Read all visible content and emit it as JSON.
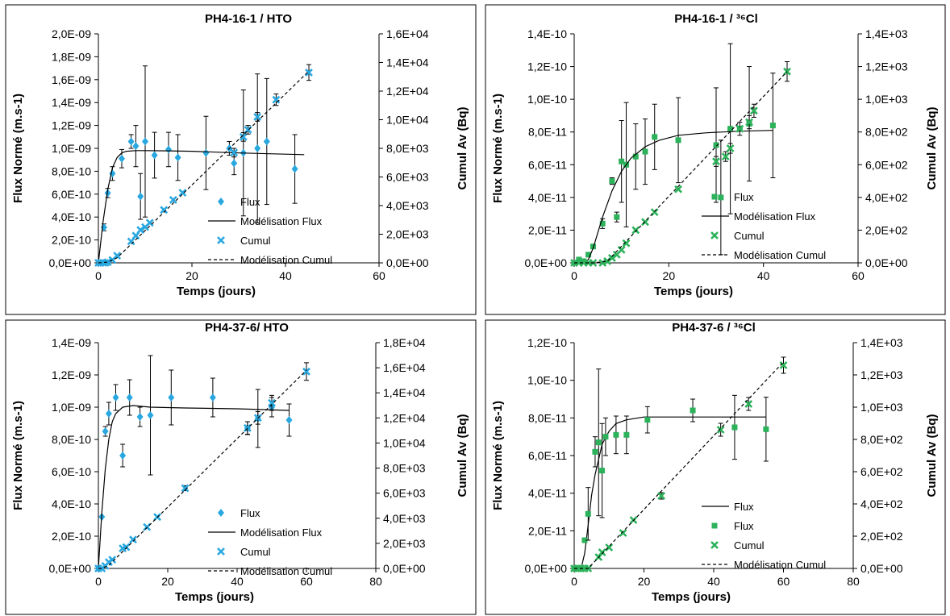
{
  "colors": {
    "hto": "#29a8e0",
    "cl": "#2bb25a",
    "line": "#000000",
    "border": "#000000",
    "grid_text": "#000000"
  },
  "chart_data": [
    {
      "type": "scatter",
      "title": "PH4-16-1 / HTO",
      "xlabel": "Temps (jours)",
      "ylabel": "Flux Normé (m.s-1)",
      "y2label": "Cumul Av (Bq)",
      "xlim": [
        0,
        60
      ],
      "xticks": [
        "0",
        "20",
        "40",
        "60"
      ],
      "ylim": [
        0,
        2e-09
      ],
      "yticks": [
        "0,0E+00",
        "2,0E-10",
        "4,0E-10",
        "6,0E-10",
        "8,0E-10",
        "1,0E-09",
        "1,2E-09",
        "1,4E-09",
        "1,6E-09",
        "1,8E-09",
        "2,0E-09"
      ],
      "y2lim": [
        0,
        16000
      ],
      "y2ticks": [
        "0,0E+00",
        "2,0E+03",
        "4,0E+03",
        "6,0E+03",
        "8,0E+03",
        "1,0E+04",
        "1,2E+04",
        "1,4E+04",
        "1,6E+04"
      ],
      "legend_position": "bottom-right",
      "legend": [
        "Flux",
        "Modélisation Flux",
        "Cumul",
        "Modélisation Cumul"
      ],
      "series": [
        {
          "name": "Flux",
          "axis": "left",
          "marker": "diamond",
          "color": "#29a8e0",
          "x": [
            0.5,
            1.2,
            2,
            3,
            5,
            7,
            8,
            9,
            10,
            12,
            15,
            17,
            23,
            28,
            29,
            31,
            34,
            36,
            42
          ],
          "y": [
            0,
            3.1e-10,
            6.1e-10,
            7.8e-10,
            9.1e-10,
            1.06e-09,
            1.02e-09,
            5.8e-10,
            1.06e-09,
            9.4e-10,
            9.9e-10,
            9.2e-10,
            9.6e-10,
            1e-09,
            8.7e-10,
            9.6e-10,
            1e-09,
            1.06e-09,
            8.2e-10
          ],
          "err": [
            1e-11,
            3e-11,
            4e-11,
            6e-11,
            8e-11,
            6e-11,
            1.8e-10,
            2e-10,
            6.6e-10,
            2e-10,
            1.5e-10,
            2e-10,
            3.2e-10,
            6e-11,
            1e-10,
            5.5e-10,
            6.5e-10,
            5.5e-10,
            3e-10
          ]
        },
        {
          "name": "Modélisation Flux",
          "axis": "left",
          "style": "solid",
          "x": [
            0,
            1,
            2,
            3,
            4,
            5,
            6,
            8,
            10,
            15,
            20,
            30,
            44
          ],
          "y": [
            0,
            3.6e-10,
            6.4e-10,
            8.3e-10,
            9.2e-10,
            9.6e-10,
            9.75e-10,
            9.8e-10,
            9.8e-10,
            9.78e-10,
            9.75e-10,
            9.6e-10,
            9.45e-10
          ]
        },
        {
          "name": "Cumul",
          "axis": "right",
          "marker": "x",
          "color": "#29a8e0",
          "x": [
            0,
            0.5,
            1,
            1.5,
            2,
            3,
            4,
            7,
            8,
            9,
            10,
            11,
            14,
            16,
            18,
            29,
            31,
            32,
            34,
            38,
            45
          ],
          "y": [
            0,
            0,
            0,
            0,
            50,
            200,
            500,
            1500,
            1900,
            2300,
            2500,
            2800,
            3700,
            4400,
            4900,
            7700,
            8800,
            9300,
            10200,
            11400,
            13300
          ],
          "err": [
            0,
            0,
            0,
            0,
            0,
            0,
            0,
            0,
            0,
            0,
            0,
            0,
            0,
            0,
            0,
            300,
            300,
            300,
            300,
            400,
            550
          ]
        },
        {
          "name": "Modélisation Cumul",
          "axis": "right",
          "style": "dashed",
          "x": [
            0,
            2,
            4,
            45
          ],
          "y": [
            0,
            50,
            350,
            13400
          ]
        }
      ]
    },
    {
      "type": "scatter",
      "title": "PH4-16-1 / ³⁶Cl",
      "xlabel": "Temps (jours)",
      "ylabel": "Flux Normé (m.s-1)",
      "y2label": "Cumul Av (Bq)",
      "xlim": [
        0,
        60
      ],
      "xticks": [
        "0",
        "20",
        "40",
        "60"
      ],
      "ylim": [
        0,
        1.4e-10
      ],
      "yticks": [
        "0,0E+00",
        "2,0E-11",
        "4,0E-11",
        "6,0E-11",
        "8,0E-11",
        "1,0E-10",
        "1,2E-10",
        "1,4E-10"
      ],
      "y2lim": [
        0,
        1400
      ],
      "y2ticks": [
        "0,0E+00",
        "2,0E+02",
        "4,0E+02",
        "6,0E+02",
        "8,0E+02",
        "1,0E+03",
        "1,2E+03",
        "1,4E+03"
      ],
      "legend_position": "bottom-right",
      "legend": [
        "Flux",
        "Modélisation Flux",
        "Cumul",
        "Modélisation Cumul"
      ],
      "series": [
        {
          "name": "Flux",
          "axis": "left",
          "marker": "square",
          "color": "#2bb25a",
          "x": [
            0,
            1,
            2,
            3,
            4,
            6,
            8,
            9,
            10,
            11,
            13,
            15,
            17,
            22,
            30,
            31,
            33,
            35,
            37,
            42
          ],
          "y": [
            0,
            2e-12,
            1e-12,
            5e-12,
            1e-11,
            2.4e-11,
            5e-11,
            2.8e-11,
            6.2e-11,
            6e-11,
            6.5e-11,
            6.8e-11,
            7.7e-11,
            7.5e-11,
            7.2e-11,
            4e-11,
            8.2e-11,
            8.2e-11,
            8.5e-11,
            8.4e-11
          ],
          "err": [
            0,
            0,
            0,
            0,
            0,
            3e-12,
            2e-12,
            3e-12,
            2.5e-11,
            3.8e-11,
            2e-11,
            2e-11,
            2e-11,
            2.6e-11,
            3.5e-11,
            3.5e-11,
            5.2e-11,
            0,
            3.5e-11,
            3.2e-11
          ]
        },
        {
          "name": "Modélisation Flux",
          "axis": "left",
          "style": "solid",
          "x": [
            0,
            2,
            3,
            4,
            6,
            8,
            10,
            12,
            15,
            18,
            22,
            28,
            35,
            42
          ],
          "y": [
            0,
            0,
            2e-12,
            9e-12,
            2.8e-11,
            4.4e-11,
            5.6e-11,
            6.4e-11,
            7.1e-11,
            7.5e-11,
            7.8e-11,
            7.95e-11,
            8.05e-11,
            8.1e-11
          ]
        },
        {
          "name": "Cumul",
          "axis": "right",
          "marker": "x",
          "color": "#2bb25a",
          "x": [
            0,
            1,
            2,
            3,
            4,
            6,
            7,
            8,
            9,
            10,
            11,
            13,
            15,
            17,
            22,
            30,
            32,
            33,
            35,
            37,
            38,
            45
          ],
          "y": [
            0,
            0,
            0,
            0,
            0,
            0,
            10,
            30,
            50,
            80,
            120,
            200,
            250,
            310,
            450,
            620,
            650,
            700,
            820,
            860,
            930,
            1170
          ],
          "err": [
            0,
            0,
            0,
            0,
            0,
            0,
            0,
            0,
            0,
            0,
            0,
            0,
            0,
            0,
            0,
            30,
            30,
            30,
            40,
            40,
            40,
            60
          ]
        },
        {
          "name": "Modélisation Cumul",
          "axis": "right",
          "style": "dashed",
          "x": [
            0,
            4,
            7,
            45
          ],
          "y": [
            0,
            0,
            10,
            1170
          ]
        }
      ]
    },
    {
      "type": "scatter",
      "title": "PH4-37-6/ HTO",
      "xlabel": "Temps (jours)",
      "ylabel": "Flux Normé (m.s-1)",
      "y2label": "Cumul Av (Bq)",
      "xlim": [
        0,
        80
      ],
      "xticks": [
        "0",
        "20",
        "40",
        "60",
        "80"
      ],
      "ylim": [
        0,
        1.4e-09
      ],
      "yticks": [
        "0,0E+00",
        "2,0E-10",
        "4,0E-10",
        "6,0E-10",
        "8,0E-10",
        "1,0E-09",
        "1,2E-09",
        "1,4E-09"
      ],
      "y2lim": [
        0,
        18000
      ],
      "y2ticks": [
        "0,0E+00",
        "2,0E+03",
        "4,0E+03",
        "6,0E+03",
        "8,0E+03",
        "1,0E+04",
        "1,2E+04",
        "1,4E+04",
        "1,6E+04",
        "1,8E+04"
      ],
      "legend_position": "bottom-right",
      "legend": [
        "Flux",
        "Modélisation Flux",
        "Cumul",
        "Modélisation Cumul"
      ],
      "series": [
        {
          "name": "Flux",
          "axis": "left",
          "marker": "diamond",
          "color": "#29a8e0",
          "x": [
            0,
            1,
            2,
            3,
            5,
            7,
            9,
            12,
            15,
            21,
            33,
            43,
            46,
            50,
            55
          ],
          "y": [
            0,
            3.2e-10,
            8.5e-10,
            9.6e-10,
            1.06e-09,
            7e-10,
            1.06e-09,
            9.4e-10,
            9.5e-10,
            1.06e-09,
            1.06e-09,
            8.7e-10,
            9.3e-10,
            1e-09,
            9.2e-10
          ],
          "err": [
            0,
            0,
            3e-11,
            7e-11,
            8e-11,
            7e-11,
            1.1e-10,
            6e-11,
            3.7e-10,
            1.7e-10,
            1.2e-10,
            4e-11,
            1.8e-10,
            6e-11,
            1e-10
          ]
        },
        {
          "name": "Modélisation Flux",
          "axis": "left",
          "style": "solid",
          "x": [
            0,
            1,
            2,
            3,
            4,
            5,
            7,
            10,
            15,
            25,
            40,
            55
          ],
          "y": [
            0,
            3.5e-10,
            6.2e-10,
            8e-10,
            9.1e-10,
            9.6e-10,
            1e-09,
            1.01e-09,
            1e-09,
            9.95e-10,
            9.9e-10,
            9.8e-10
          ]
        },
        {
          "name": "Cumul",
          "axis": "right",
          "marker": "x",
          "color": "#29a8e0",
          "x": [
            0,
            1,
            2,
            3,
            4,
            7,
            8,
            10,
            14,
            17,
            25,
            43,
            46,
            50,
            60
          ],
          "y": [
            0,
            0,
            200,
            500,
            700,
            1600,
            1700,
            2300,
            3300,
            4100,
            6400,
            11200,
            12000,
            13200,
            15700
          ],
          "err": [
            0,
            0,
            0,
            0,
            0,
            0,
            0,
            0,
            0,
            0,
            200,
            500,
            500,
            600,
            700
          ]
        },
        {
          "name": "Modélisation Cumul",
          "axis": "right",
          "style": "dashed",
          "x": [
            0,
            1,
            3,
            60
          ],
          "y": [
            0,
            0,
            250,
            15800
          ]
        }
      ]
    },
    {
      "type": "scatter",
      "title": "PH4-37-6 / ³⁶Cl",
      "xlabel": "Temps (jours)",
      "ylabel": "Flux Normé (m.s-1)",
      "y2label": "Cumul Av (Bq)",
      "xlim": [
        0,
        80
      ],
      "xticks": [
        "0",
        "20",
        "40",
        "60",
        "80"
      ],
      "ylim": [
        0,
        1.2e-10
      ],
      "yticks": [
        "0,0E+00",
        "2,0E-11",
        "4,0E-11",
        "6,0E-11",
        "8,0E-11",
        "1,0E-10",
        "1,2E-10"
      ],
      "y2lim": [
        0,
        1400
      ],
      "y2ticks": [
        "0,0E+00",
        "2,0E+02",
        "4,0E+02",
        "6,0E+02",
        "8,0E+02",
        "1,0E+03",
        "1,2E+03",
        "1,4E+03"
      ],
      "legend_position": "bottom-right",
      "legend": [
        "Flux",
        "Flux",
        "Cumul",
        "Modélisation Cumul"
      ],
      "series": [
        {
          "name": "Flux",
          "axis": "left",
          "style": "solid",
          "x": [
            0,
            2,
            3,
            4,
            5,
            6,
            7,
            8,
            10,
            12,
            15,
            20,
            30,
            45,
            55
          ],
          "y": [
            0,
            0,
            8e-12,
            2.3e-11,
            3.9e-11,
            5e-11,
            5.8e-11,
            6.6e-11,
            7.3e-11,
            7.7e-11,
            7.9e-11,
            8.05e-11,
            8.05e-11,
            8.05e-11,
            8.05e-11
          ]
        },
        {
          "name": "Flux",
          "axis": "left",
          "marker": "square",
          "color": "#2bb25a",
          "x": [
            0,
            1,
            2,
            3,
            4,
            6,
            7,
            8,
            9,
            12,
            15,
            21,
            34,
            46,
            55
          ],
          "y": [
            0,
            0,
            0,
            1.5e-11,
            2.9e-11,
            6.2e-11,
            6.7e-11,
            5.2e-11,
            7e-11,
            7.1e-11,
            7.1e-11,
            7.9e-11,
            8.4e-11,
            7.5e-11,
            7.4e-11
          ],
          "err": [
            0,
            0,
            0,
            0,
            1.4e-11,
            8e-12,
            3.9e-11,
            2.5e-11,
            1e-11,
            1e-11,
            1e-11,
            7e-12,
            6e-12,
            1.7e-11,
            1.7e-11
          ]
        },
        {
          "name": "Cumul",
          "axis": "right",
          "marker": "x",
          "color": "#2bb25a",
          "x": [
            0,
            1,
            2,
            3,
            4,
            7,
            8,
            10,
            14,
            17,
            25,
            42,
            50,
            60
          ],
          "y": [
            0,
            0,
            0,
            0,
            0,
            70,
            100,
            130,
            220,
            300,
            450,
            860,
            1020,
            1260
          ],
          "err": [
            0,
            0,
            0,
            0,
            0,
            0,
            0,
            0,
            0,
            0,
            20,
            40,
            40,
            50
          ]
        },
        {
          "name": "Modélisation Cumul",
          "axis": "right",
          "style": "dashed",
          "x": [
            0,
            4,
            60
          ],
          "y": [
            0,
            0,
            1280
          ]
        }
      ]
    }
  ]
}
